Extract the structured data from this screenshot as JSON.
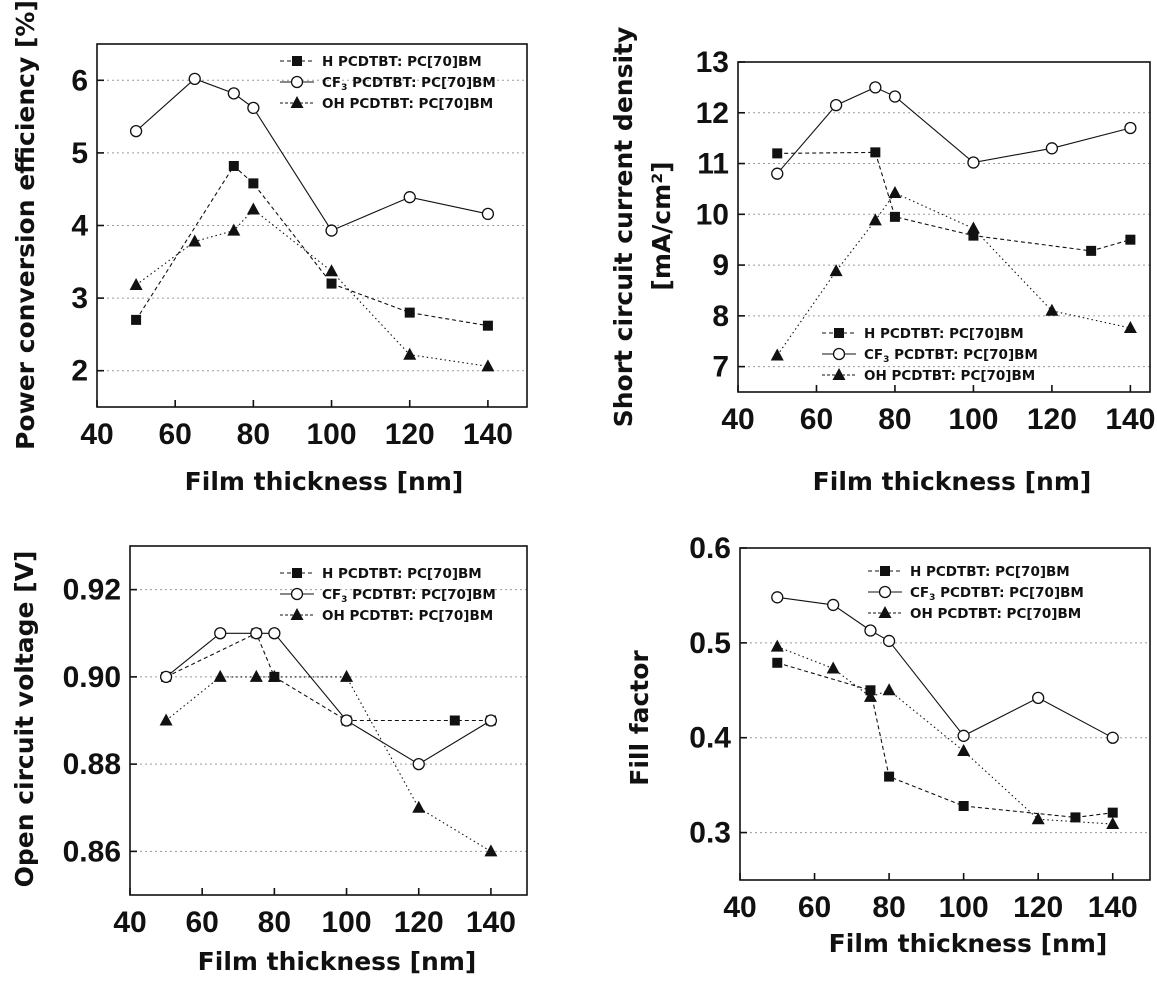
{
  "charts": [
    {
      "type": "line",
      "xlabel": "Film thickness [nm]",
      "ylabel": "Power conversion efficiency [%]",
      "xlim": [
        40,
        150
      ],
      "ylim": [
        1.5,
        6.5
      ],
      "xticks": [
        "40",
        "60",
        "80",
        "100",
        "120",
        "140"
      ],
      "yticks": [
        "2",
        "3",
        "4",
        "5",
        "6"
      ],
      "legend_position": "top-right",
      "series": [
        {
          "name": "H PCDTBT: PC[70]BM",
          "name_parts": [
            "H PCDTBT: PC[70]BM"
          ],
          "marker": "square",
          "line": "dashed",
          "x": [
            50,
            75,
            80,
            100,
            120,
            140
          ],
          "y": [
            2.7,
            4.82,
            4.58,
            3.2,
            2.8,
            2.62
          ]
        },
        {
          "name": "CF3 PCDTBT: PC[70]BM",
          "name_parts": [
            "CF",
            "3",
            " PCDTBT: PC[70]BM"
          ],
          "marker": "circle",
          "line": "solid",
          "x": [
            50,
            65,
            75,
            80,
            100,
            120,
            140
          ],
          "y": [
            5.3,
            6.02,
            5.82,
            5.62,
            3.93,
            4.39,
            4.16
          ]
        },
        {
          "name": "OH PCDTBT: PC[70]BM",
          "name_parts": [
            "OH PCDTBT: PC[70]BM"
          ],
          "marker": "triangle",
          "line": "dotted",
          "x": [
            50,
            65,
            75,
            80,
            100,
            120,
            140
          ],
          "y": [
            3.18,
            3.78,
            3.93,
            4.22,
            3.37,
            2.22,
            2.06
          ]
        }
      ]
    },
    {
      "type": "line",
      "xlabel": "Film thickness [nm]",
      "ylabel": "Short circuit current density",
      "ylabel2": "[mA/cm²]",
      "xlim": [
        40,
        145
      ],
      "ylim": [
        6.5,
        13
      ],
      "xticks": [
        "40",
        "60",
        "80",
        "100",
        "120",
        "140"
      ],
      "yticks": [
        "7",
        "8",
        "9",
        "10",
        "11",
        "12",
        "13"
      ],
      "legend_position": "bottom-center",
      "series": [
        {
          "name": "H PCDTBT: PC[70]BM",
          "name_parts": [
            "H PCDTBT: PC[70]BM"
          ],
          "marker": "square",
          "line": "dashed",
          "x": [
            50,
            75,
            80,
            100,
            130,
            140
          ],
          "y": [
            11.2,
            11.22,
            9.95,
            9.58,
            9.28,
            9.5
          ]
        },
        {
          "name": "CF3 PCDTBT: PC[70]BM",
          "name_parts": [
            "CF",
            "3",
            " PCDTBT: PC[70]BM"
          ],
          "marker": "circle",
          "line": "solid",
          "x": [
            50,
            65,
            75,
            80,
            100,
            120,
            140
          ],
          "y": [
            10.8,
            12.15,
            12.5,
            12.32,
            11.02,
            11.3,
            11.7
          ]
        },
        {
          "name": "OH PCDTBT: PC[70]BM",
          "name_parts": [
            "OH PCDTBT: PC[70]BM"
          ],
          "marker": "triangle",
          "line": "dotted",
          "x": [
            50,
            65,
            75,
            80,
            100,
            120,
            140
          ],
          "y": [
            7.22,
            8.88,
            9.88,
            10.42,
            9.72,
            8.1,
            7.76
          ]
        }
      ]
    },
    {
      "type": "line",
      "xlabel": "Film thickness [nm]",
      "ylabel": "Open circuit voltage [V]",
      "xlim": [
        40,
        150
      ],
      "ylim": [
        0.85,
        0.93
      ],
      "xticks": [
        "40",
        "60",
        "80",
        "100",
        "120",
        "140"
      ],
      "yticks": [
        "0.86",
        "0.88",
        "0.90",
        "0.92"
      ],
      "legend_position": "top-right",
      "series": [
        {
          "name": "H PCDTBT: PC[70]BM",
          "name_parts": [
            "H PCDTBT: PC[70]BM"
          ],
          "marker": "square",
          "line": "dashed",
          "x": [
            50,
            75,
            80,
            100,
            130,
            140
          ],
          "y": [
            0.9,
            0.91,
            0.9,
            0.89,
            0.89,
            0.89
          ]
        },
        {
          "name": "CF3 PCDTBT: PC[70]BM",
          "name_parts": [
            "CF",
            "3",
            " PCDTBT: PC[70]BM"
          ],
          "marker": "circle",
          "line": "solid",
          "x": [
            50,
            65,
            75,
            80,
            100,
            120,
            140
          ],
          "y": [
            0.9,
            0.91,
            0.91,
            0.91,
            0.89,
            0.88,
            0.89
          ]
        },
        {
          "name": "OH PCDTBT: PC[70]BM",
          "name_parts": [
            "OH PCDTBT: PC[70]BM"
          ],
          "marker": "triangle",
          "line": "dotted",
          "x": [
            50,
            65,
            75,
            80,
            100,
            120,
            140
          ],
          "y": [
            0.89,
            0.9,
            0.9,
            0.9,
            0.9,
            0.87,
            0.86
          ]
        }
      ]
    },
    {
      "type": "line",
      "xlabel": "Film thickness [nm]",
      "ylabel": "Fill factor",
      "xlim": [
        40,
        150
      ],
      "ylim": [
        0.25,
        0.6
      ],
      "xticks": [
        "40",
        "60",
        "80",
        "100",
        "120",
        "140"
      ],
      "yticks": [
        "0.3",
        "0.4",
        "0.5",
        "0.6"
      ],
      "legend_position": "top-right",
      "series": [
        {
          "name": "H PCDTBT: PC[70]BM",
          "name_parts": [
            "H PCDTBT: PC[70]BM"
          ],
          "marker": "square",
          "line": "dashed",
          "x": [
            50,
            75,
            80,
            100,
            130,
            140
          ],
          "y": [
            0.479,
            0.45,
            0.359,
            0.328,
            0.316,
            0.321
          ]
        },
        {
          "name": "CF3 PCDTBT: PC[70]BM",
          "name_parts": [
            "CF",
            "3",
            " PCDTBT: PC[70]BM"
          ],
          "marker": "circle",
          "line": "solid",
          "x": [
            50,
            65,
            75,
            80,
            100,
            120,
            140
          ],
          "y": [
            0.548,
            0.54,
            0.513,
            0.502,
            0.402,
            0.442,
            0.4
          ]
        },
        {
          "name": "OH PCDTBT: PC[70]BM",
          "name_parts": [
            "OH PCDTBT: PC[70]BM"
          ],
          "marker": "triangle",
          "line": "dotted",
          "x": [
            50,
            65,
            75,
            80,
            100,
            120,
            140
          ],
          "y": [
            0.496,
            0.473,
            0.443,
            0.45,
            0.386,
            0.314,
            0.309
          ]
        }
      ]
    }
  ],
  "colors": {
    "axis": "#111111",
    "grid": "#9a9a9a",
    "marker": "#111111",
    "background": "#ffffff"
  }
}
